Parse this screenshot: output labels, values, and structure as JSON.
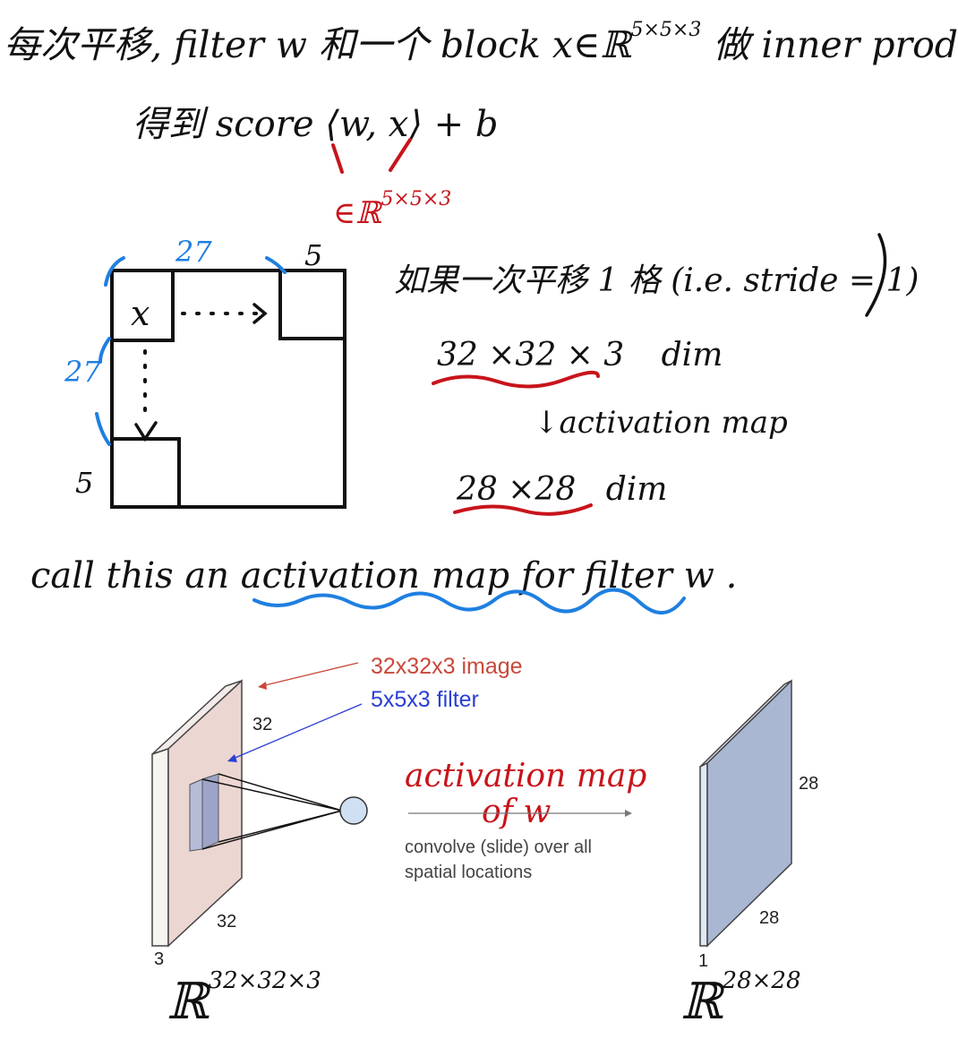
{
  "notes": {
    "line1": "每次平移, filter w 和一个 block x∈ℝ",
    "line1_sup": "5×5×3",
    "line1_tail": "做 inner prod",
    "line2": "得到 score ⟨w, x⟩ + b",
    "line3_mark": "∈ℝ",
    "line3_sup": "5×5×3",
    "grid": {
      "top_label": "27",
      "corner_label": "5",
      "left_label": "27",
      "bottom_left_label": "5",
      "block_label": "x"
    },
    "right_col": {
      "stride": "如果一次平移 1 格 (i.e. stride = 1)",
      "input_dim": "32 ×32 × 3",
      "input_dim_unit": "dim",
      "arrow_label": "activation map",
      "output_dim": "28 ×28",
      "output_dim_unit": "dim"
    },
    "summary_prefix": "call this an ",
    "summary_underlined": "activation map for filter w",
    "summary_suffix": " ."
  },
  "figure": {
    "image_label": "32x32x3 image",
    "filter_label": "5x5x3 filter",
    "left_height": "32",
    "left_width": "32",
    "left_depth": "3",
    "right_height": "28",
    "right_width": "28",
    "right_depth": "1",
    "annotation_line1": "activation map",
    "annotation_line2": "of w",
    "convolve_line1": "convolve (slide) over all",
    "convolve_line2": "spatial locations",
    "left_space": "ℝ",
    "left_space_sup": "32×32×3",
    "right_space": "ℝ",
    "right_space_sup": "28×28"
  },
  "colors": {
    "red": "#c8141b",
    "blue": "#1f7fe0",
    "image_label": "#c9483a",
    "filter_label": "#2a3fd4",
    "left_slab": "#ecd6d2",
    "right_slab": "#aab7d2"
  }
}
